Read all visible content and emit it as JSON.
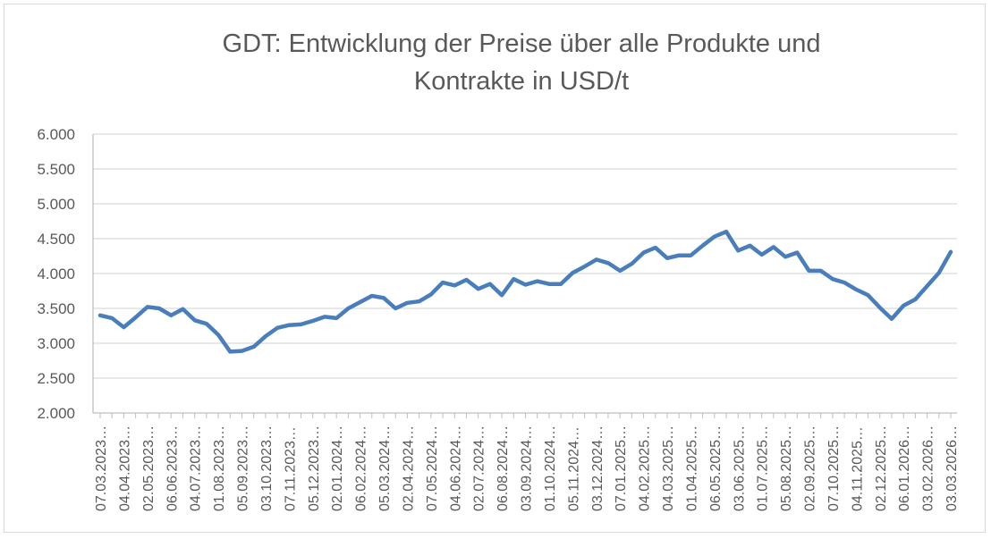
{
  "chart_data": {
    "type": "line",
    "title_lines": [
      "GDT: Entwicklung der Preise über alle Produkte und",
      "Kontrakte in USD/t"
    ],
    "xlabel": "",
    "ylabel": "",
    "ylim": [
      2000,
      6000
    ],
    "y_ticks": [
      2000,
      2500,
      3000,
      3500,
      4000,
      4500,
      5000,
      5500,
      6000
    ],
    "y_tick_labels": [
      "2.000",
      "2.500",
      "3.000",
      "3.500",
      "4.000",
      "4.500",
      "5.000",
      "5.500",
      "6.000"
    ],
    "grid": "horizontal",
    "line_color": "#4a7ebb",
    "x_tick_labels": [
      "07.03.2023…",
      "04.04.2023…",
      "02.05.2023…",
      "06.06.2023…",
      "04.07.2023…",
      "01.08.2023…",
      "05.09.2023…",
      "03.10.2023…",
      "07.11.2023…",
      "05.12.2023…",
      "02.01.2024…",
      "06.02.2024…",
      "05.03.2024…",
      "02.04.2024…",
      "07.05.2024…",
      "04.06.2024…",
      "02.07.2024…",
      "06.08.2024…",
      "03.09.2024…",
      "01.10.2024…",
      "05.11.2024…",
      "03.12.2024…",
      "07.01.2025…",
      "04.02.2025…",
      "04.03.2025…",
      "01.04.2025…",
      "06.05.2025…",
      "03.06.2025…",
      "01.07.2025…",
      "05.08.2025…",
      "02.09.2025…",
      "07.10.2025…",
      "04.11.2025…",
      "02.12.2025…",
      "06.01.2026…",
      "03.02.2026…",
      "03.03.2026…"
    ],
    "values": [
      3400,
      3360,
      3230,
      3370,
      3520,
      3500,
      3400,
      3490,
      3330,
      3280,
      3120,
      2880,
      2890,
      2950,
      3100,
      3220,
      3260,
      3270,
      3320,
      3380,
      3360,
      3500,
      3590,
      3680,
      3650,
      3500,
      3580,
      3600,
      3700,
      3870,
      3830,
      3910,
      3780,
      3850,
      3690,
      3920,
      3840,
      3890,
      3850,
      3850,
      4010,
      4100,
      4200,
      4150,
      4040,
      4140,
      4300,
      4370,
      4220,
      4260,
      4260,
      4400,
      4530,
      4600,
      4330,
      4400,
      4270,
      4380,
      4240,
      4300,
      4040,
      4040,
      3920,
      3870,
      3770,
      3690,
      3510,
      3350,
      3540,
      3630,
      3820,
      4010,
      4310
    ]
  }
}
